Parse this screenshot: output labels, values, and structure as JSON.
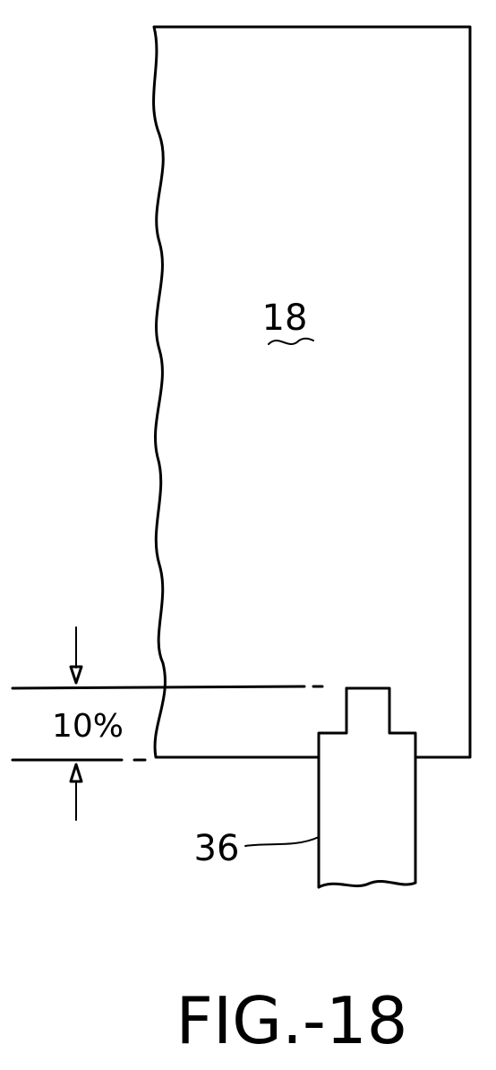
{
  "figure": {
    "caption": "FIG.-18",
    "labels": {
      "element_18": "18",
      "element_36": "36",
      "dimension": "10%"
    }
  }
}
